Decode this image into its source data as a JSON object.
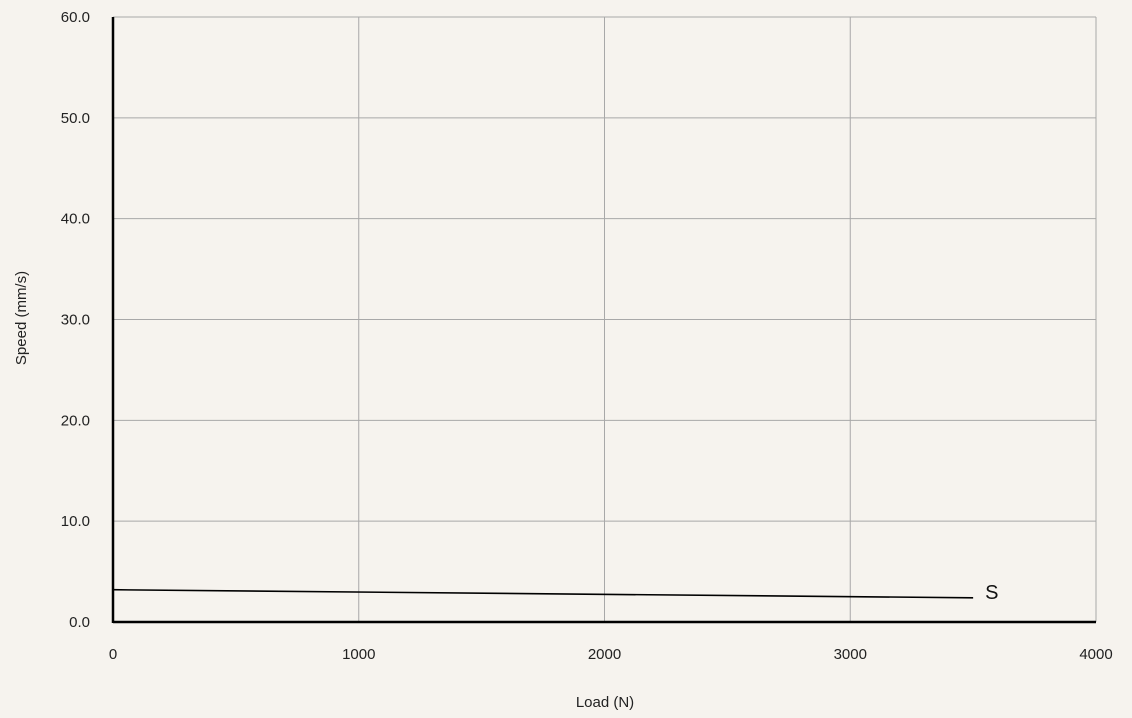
{
  "chart_data": {
    "type": "line",
    "title": "",
    "xlabel": "Load (N)",
    "ylabel": "Speed (mm/s)",
    "xlim": [
      0,
      4000
    ],
    "ylim": [
      0,
      60
    ],
    "x_ticks": [
      "0",
      "1000",
      "2000",
      "3000",
      "4000"
    ],
    "y_ticks": [
      "0.0",
      "10.0",
      "20.0",
      "30.0",
      "40.0",
      "50.0",
      "60.0"
    ],
    "grid": true,
    "series": [
      {
        "name": "S",
        "x": [
          0,
          3500
        ],
        "y": [
          3.2,
          2.4
        ],
        "color": "#000000"
      }
    ]
  },
  "colors": {
    "background": "#f6f3ee",
    "grid": "#a8a8a8",
    "axis": "#000000"
  }
}
